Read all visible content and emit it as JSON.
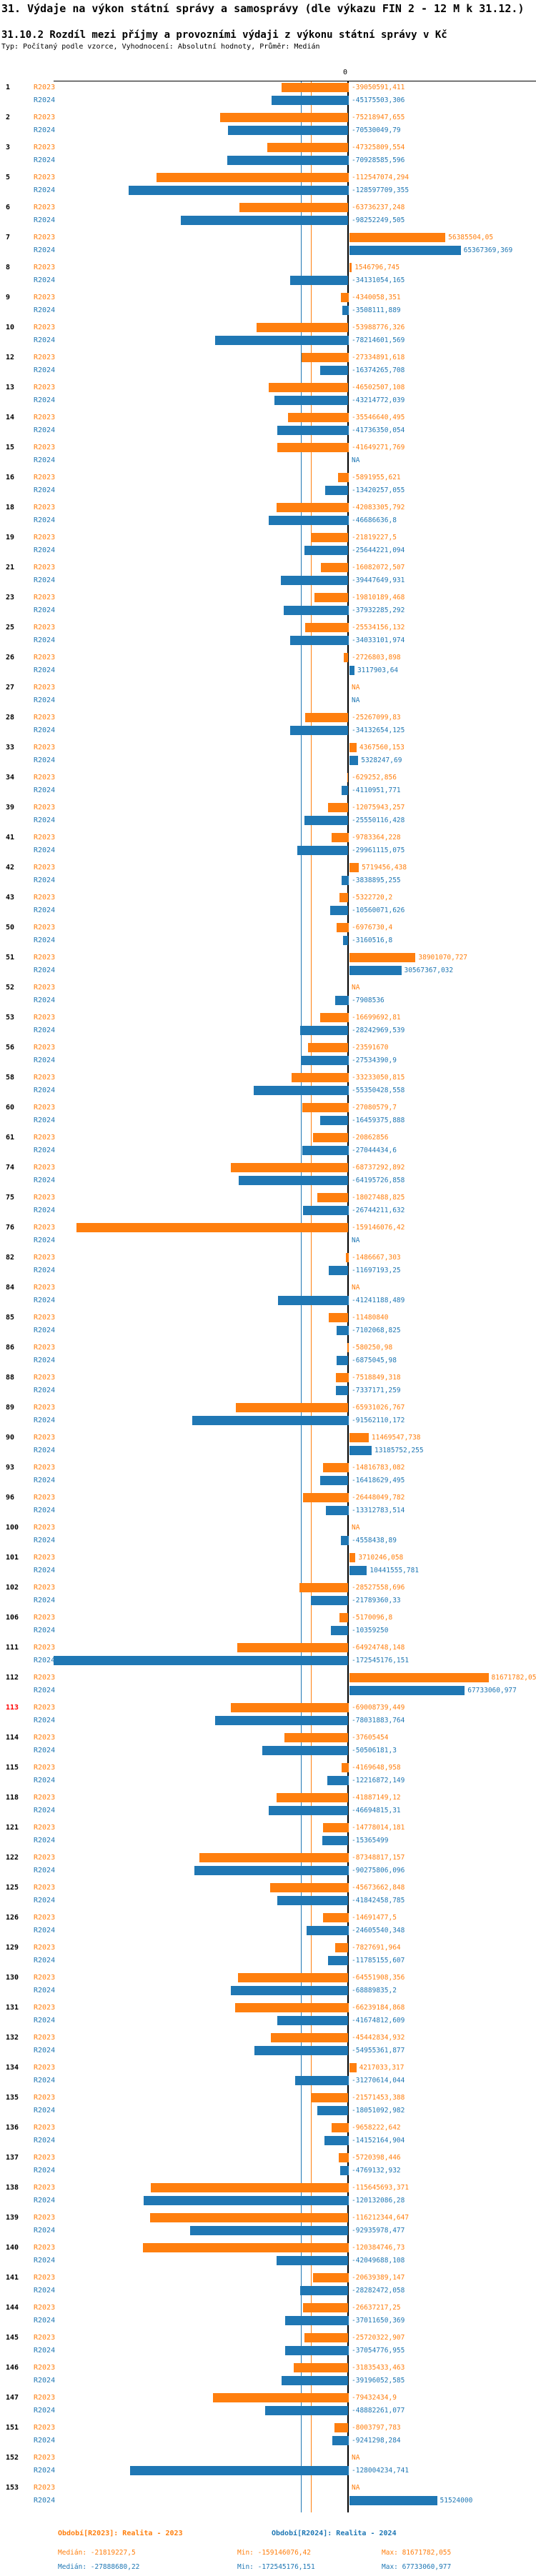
{
  "header": {
    "title": "31. Výdaje na výkon státní správy a samosprávy (dle výkazu FIN 2 - 12 M k 31.12.)",
    "subtitle": "31.10.2 Rozdíl mezi příjmy a provozními výdaji z výkonu státní správy v Kč",
    "meta": "Typ: Počítaný podle vzorce, Vyhodnocení: Absolutní hodnoty, Průměr: Medián"
  },
  "axis": {
    "zero_label": "0"
  },
  "series_labels": {
    "r2023": "R2023",
    "r2024": "R2024"
  },
  "colors": {
    "r2023": "#ff7f0e",
    "r2024": "#1f77b4",
    "highlight": "#ff0000",
    "axis": "#000000"
  },
  "legend": {
    "r2023": "Období[R2023]: Realita - 2023",
    "r2024": "Období[R2024]: Realita - 2024"
  },
  "stats": {
    "r2023": {
      "median": "Medián: -21819227,5",
      "min": "Min: -159146076,42",
      "max": "Max: 81671782,055"
    },
    "r2024": {
      "median": "Medián: -27888680,22",
      "min": "Min: -172545176,151",
      "max": "Max: 67733060,977"
    }
  },
  "chart_data": {
    "type": "bar",
    "orientation": "horizontal",
    "unit": "Kč",
    "series": [
      "R2023",
      "R2024"
    ],
    "na_text": "NA",
    "medians": {
      "R2023": -21819227.5,
      "R2024": -27888680.22
    },
    "min": {
      "R2023": -159146076.42,
      "R2024": -172545176.151
    },
    "max": {
      "R2023": 81671782.055,
      "R2024": 67733060.977
    },
    "xlim": [
      -180000000,
      115000000
    ],
    "rows": [
      {
        "n": "1",
        "r2023": "-39050591,411",
        "r2024": "-45175503,306"
      },
      {
        "n": "2",
        "r2023": "-75218947,655",
        "r2024": "-70530049,79"
      },
      {
        "n": "3",
        "r2023": "-47325809,554",
        "r2024": "-70928585,596"
      },
      {
        "n": "5",
        "r2023": "-112547074,294",
        "r2024": "-128597709,355"
      },
      {
        "n": "6",
        "r2023": "-63736237,248",
        "r2024": "-98252249,505"
      },
      {
        "n": "7",
        "r2023": "56385504,05",
        "r2024": "65367369,369"
      },
      {
        "n": "8",
        "r2023": "1546796,745",
        "r2024": "-34131054,165"
      },
      {
        "n": "9",
        "r2023": "-4340058,351",
        "r2024": "-3508111,889"
      },
      {
        "n": "10",
        "r2023": "-53988776,326",
        "r2024": "-78214601,569"
      },
      {
        "n": "12",
        "r2023": "-27334891,618",
        "r2024": "-16374265,708"
      },
      {
        "n": "13",
        "r2023": "-46502507,108",
        "r2024": "-43214772,039"
      },
      {
        "n": "14",
        "r2023": "-35546640,495",
        "r2024": "-41736350,054"
      },
      {
        "n": "15",
        "r2023": "-41649271,769",
        "r2024": "NA"
      },
      {
        "n": "16",
        "r2023": "-5891955,621",
        "r2024": "-13420257,055"
      },
      {
        "n": "18",
        "r2023": "-42083305,792",
        "r2024": "-46686636,8"
      },
      {
        "n": "19",
        "r2023": "-21819227,5",
        "r2024": "-25644221,094"
      },
      {
        "n": "21",
        "r2023": "-16082072,507",
        "r2024": "-39447649,931"
      },
      {
        "n": "23",
        "r2023": "-19810189,468",
        "r2024": "-37932285,292"
      },
      {
        "n": "25",
        "r2023": "-25534156,132",
        "r2024": "-34033101,974"
      },
      {
        "n": "26",
        "r2023": "-2726803,898",
        "r2024": "3117903,64"
      },
      {
        "n": "27",
        "r2023": "NA",
        "r2024": "NA"
      },
      {
        "n": "28",
        "r2023": "-25267099,83",
        "r2024": "-34132654,125"
      },
      {
        "n": "33",
        "r2023": "4367560,153",
        "r2024": "5328247,69"
      },
      {
        "n": "34",
        "r2023": "-629252,856",
        "r2024": "-4110951,771"
      },
      {
        "n": "39",
        "r2023": "-12075943,257",
        "r2024": "-25550116,428"
      },
      {
        "n": "41",
        "r2023": "-9783364,228",
        "r2024": "-29961115,075"
      },
      {
        "n": "42",
        "r2023": "5719456,438",
        "r2024": "-3838895,255"
      },
      {
        "n": "43",
        "r2023": "-5322720,2",
        "r2024": "-10560071,626"
      },
      {
        "n": "50",
        "r2023": "-6976730,4",
        "r2024": "-3160516,8"
      },
      {
        "n": "51",
        "r2023": "38901070,727",
        "r2024": "30567367,032"
      },
      {
        "n": "52",
        "r2023": "NA",
        "r2024": "-7908536"
      },
      {
        "n": "53",
        "r2023": "-16699692,81",
        "r2024": "-28242969,539"
      },
      {
        "n": "56",
        "r2023": "-23591670",
        "r2024": "-27534390,9"
      },
      {
        "n": "58",
        "r2023": "-33233050,815",
        "r2024": "-55350428,558"
      },
      {
        "n": "60",
        "r2023": "-27080579,7",
        "r2024": "-16459375,888"
      },
      {
        "n": "61",
        "r2023": "-20862856",
        "r2024": "-27044434,6"
      },
      {
        "n": "74",
        "r2023": "-68737292,892",
        "r2024": "-64195726,858"
      },
      {
        "n": "75",
        "r2023": "-18027488,825",
        "r2024": "-26744211,632"
      },
      {
        "n": "76",
        "r2023": "-159146076,42",
        "r2024": "NA"
      },
      {
        "n": "82",
        "r2023": "-1486667,303",
        "r2024": "-11697193,25"
      },
      {
        "n": "84",
        "r2023": "NA",
        "r2024": "-41241188,489"
      },
      {
        "n": "85",
        "r2023": "-11480840",
        "r2024": "-7102068,825"
      },
      {
        "n": "86",
        "r2023": "-580250,98",
        "r2024": "-6875045,98"
      },
      {
        "n": "88",
        "r2023": "-7518849,318",
        "r2024": "-7337171,259"
      },
      {
        "n": "89",
        "r2023": "-65931026,767",
        "r2024": "-91562110,172"
      },
      {
        "n": "90",
        "r2023": "11469547,738",
        "r2024": "13185752,255"
      },
      {
        "n": "93",
        "r2023": "-14816783,082",
        "r2024": "-16418629,495"
      },
      {
        "n": "96",
        "r2023": "-26448049,782",
        "r2024": "-13312783,514"
      },
      {
        "n": "100",
        "r2023": "NA",
        "r2024": "-4558438,89"
      },
      {
        "n": "101",
        "r2023": "3710246,058",
        "r2024": "10441555,781"
      },
      {
        "n": "102",
        "r2023": "-28527558,696",
        "r2024": "-21789360,33"
      },
      {
        "n": "106",
        "r2023": "-5170096,8",
        "r2024": "-10359250"
      },
      {
        "n": "111",
        "r2023": "-64924748,148",
        "r2024": "-172545176,151"
      },
      {
        "n": "112",
        "r2023": "81671782,055",
        "r2024": "67733060,977"
      },
      {
        "n": "113",
        "highlight": true,
        "r2023": "-69008739,449",
        "r2024": "-78031883,764"
      },
      {
        "n": "114",
        "r2023": "-37605454",
        "r2024": "-50506181,3"
      },
      {
        "n": "115",
        "r2023": "-4169648,958",
        "r2024": "-12216872,149"
      },
      {
        "n": "118",
        "r2023": "-41887149,12",
        "r2024": "-46694815,31"
      },
      {
        "n": "121",
        "r2023": "-14778014,181",
        "r2024": "-15365499"
      },
      {
        "n": "122",
        "r2023": "-87348817,157",
        "r2024": "-90275806,096"
      },
      {
        "n": "125",
        "r2023": "-45673662,848",
        "r2024": "-41842458,785"
      },
      {
        "n": "126",
        "r2023": "-14691477,5",
        "r2024": "-24605540,348"
      },
      {
        "n": "129",
        "r2023": "-7827691,964",
        "r2024": "-11785155,607"
      },
      {
        "n": "130",
        "r2023": "-64551908,356",
        "r2024": "-68889835,2"
      },
      {
        "n": "131",
        "r2023": "-66239184,868",
        "r2024": "-41674812,609"
      },
      {
        "n": "132",
        "r2023": "-45442834,932",
        "r2024": "-54955361,877"
      },
      {
        "n": "134",
        "r2023": "4217033,317",
        "r2024": "-31270614,044"
      },
      {
        "n": "135",
        "r2023": "-21571453,388",
        "r2024": "-18051092,982"
      },
      {
        "n": "136",
        "r2023": "-9658222,642",
        "r2024": "-14152164,904"
      },
      {
        "n": "137",
        "r2023": "-5720398,446",
        "r2024": "-4769132,932"
      },
      {
        "n": "138",
        "r2023": "-115645693,371",
        "r2024": "-120132086,28"
      },
      {
        "n": "139",
        "r2023": "-116212344,647",
        "r2024": "-92935978,477"
      },
      {
        "n": "140",
        "r2023": "-120384746,73",
        "r2024": "-42049688,108"
      },
      {
        "n": "141",
        "r2023": "-20639389,147",
        "r2024": "-28282472,058"
      },
      {
        "n": "144",
        "r2023": "-26637217,25",
        "r2024": "-37011650,369"
      },
      {
        "n": "145",
        "r2023": "-25720322,907",
        "r2024": "-37054776,955"
      },
      {
        "n": "146",
        "r2023": "-31835433,463",
        "r2024": "-39196052,585"
      },
      {
        "n": "147",
        "r2023": "-79432434,9",
        "r2024": "-48882261,077"
      },
      {
        "n": "151",
        "r2023": "-8003797,783",
        "r2024": "-9241298,284"
      },
      {
        "n": "152",
        "r2023": "NA",
        "r2024": "-128004234,741"
      },
      {
        "n": "153",
        "r2023": "NA",
        "r2024": "51524000"
      }
    ]
  }
}
